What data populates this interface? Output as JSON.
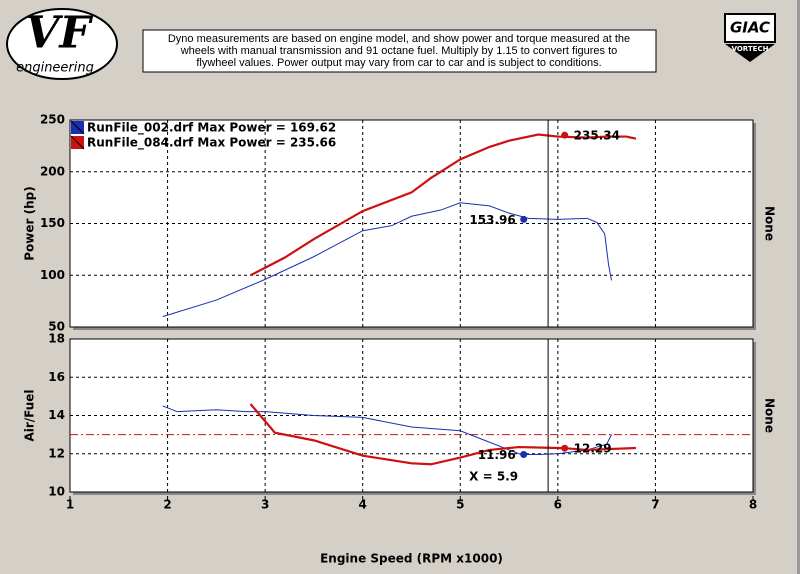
{
  "header": {
    "logo": "VF",
    "logo_sub": "engineering",
    "brand": "GIAC",
    "brand_sub": "VORTECH",
    "note": [
      "Dyno measurements are based on engine model, and show power and torque measured at the",
      "wheels with manual transmission and 91 octane fuel. Multiply by 1.15 to convert figures to",
      "flywheel values. Power output may vary from car to car and is subject to conditions."
    ]
  },
  "chart_data": [
    {
      "type": "line",
      "ylabel": "Power (hp)",
      "y2label": "None",
      "xlim": [
        1,
        8
      ],
      "xticks": [
        1,
        2,
        3,
        4,
        5,
        6,
        7,
        8
      ],
      "show_xtick_labels": false,
      "ylim": [
        50,
        250
      ],
      "yticks": [
        50,
        100,
        150,
        200,
        250
      ],
      "grid": true,
      "legend": "upper left",
      "series": [
        {
          "name": "RunFile_002.drf Max Power = 169.62",
          "color": "#1a2fb0",
          "width": 1,
          "x": [
            1.95,
            2.5,
            3,
            3.5,
            4,
            4.3,
            4.5,
            4.8,
            5,
            5.3,
            5.5,
            5.7,
            6,
            6.3,
            6.4,
            6.48,
            6.52,
            6.55
          ],
          "values": [
            60,
            76,
            96,
            118,
            143,
            148,
            157,
            163,
            170,
            167,
            160,
            155,
            154,
            155,
            151,
            140,
            110,
            95
          ]
        },
        {
          "name": "RunFile_084.drf Max Power = 235.66",
          "color": "#cc1111",
          "width": 2.2,
          "x": [
            2.85,
            3.2,
            3.5,
            4,
            4.5,
            4.7,
            5,
            5.3,
            5.5,
            5.8,
            6,
            6.3,
            6.5,
            6.7,
            6.8
          ],
          "values": [
            100,
            117,
            135,
            162,
            180,
            194,
            212,
            224,
            230,
            236,
            234,
            233,
            234,
            234,
            232
          ]
        }
      ],
      "markers": [
        {
          "series": 0,
          "x": 5.65,
          "y": 153.96
        },
        {
          "series": 1,
          "x": 6.07,
          "y": 235.34
        }
      ],
      "cursor": {
        "value": 5.9
      }
    },
    {
      "type": "line",
      "ylabel": "Air/Fuel",
      "y2label": "None",
      "xlabel": "Engine Speed (RPM x1000)",
      "xlim": [
        1,
        8
      ],
      "xticks": [
        1,
        2,
        3,
        4,
        5,
        6,
        7,
        8
      ],
      "show_xtick_labels": true,
      "ylim": [
        10,
        18
      ],
      "yticks": [
        10,
        12,
        14,
        16,
        18
      ],
      "grid": true,
      "series": [
        {
          "color": "#1a2fb0",
          "width": 1,
          "x": [
            1.95,
            2.1,
            2.5,
            2.8,
            3,
            3.5,
            4,
            4.5,
            5,
            5.3,
            5.6,
            5.65,
            5.8,
            6,
            6.3,
            6.5,
            6.55
          ],
          "values": [
            14.5,
            14.2,
            14.3,
            14.2,
            14.2,
            14.0,
            13.9,
            13.4,
            13.2,
            12.6,
            12.0,
            11.96,
            11.96,
            12.0,
            12.2,
            12.5,
            13.0
          ]
        },
        {
          "color": "#cc1111",
          "width": 2.2,
          "x": [
            2.85,
            3.1,
            3.5,
            4,
            4.5,
            4.7,
            5,
            5.3,
            5.6,
            6,
            6.07,
            6.3,
            6.8
          ],
          "values": [
            14.6,
            13.1,
            12.7,
            11.9,
            11.5,
            11.45,
            11.8,
            12.2,
            12.35,
            12.3,
            12.29,
            12.2,
            12.3
          ]
        }
      ],
      "markers": [
        {
          "series": 0,
          "x": 5.65,
          "y": 11.96
        },
        {
          "series": 1,
          "x": 6.07,
          "y": 12.29
        }
      ],
      "ref_line": {
        "value": 13,
        "color": "#cc1111"
      },
      "cursor": {
        "value": 5.9,
        "label": "X = 5.9"
      }
    }
  ]
}
